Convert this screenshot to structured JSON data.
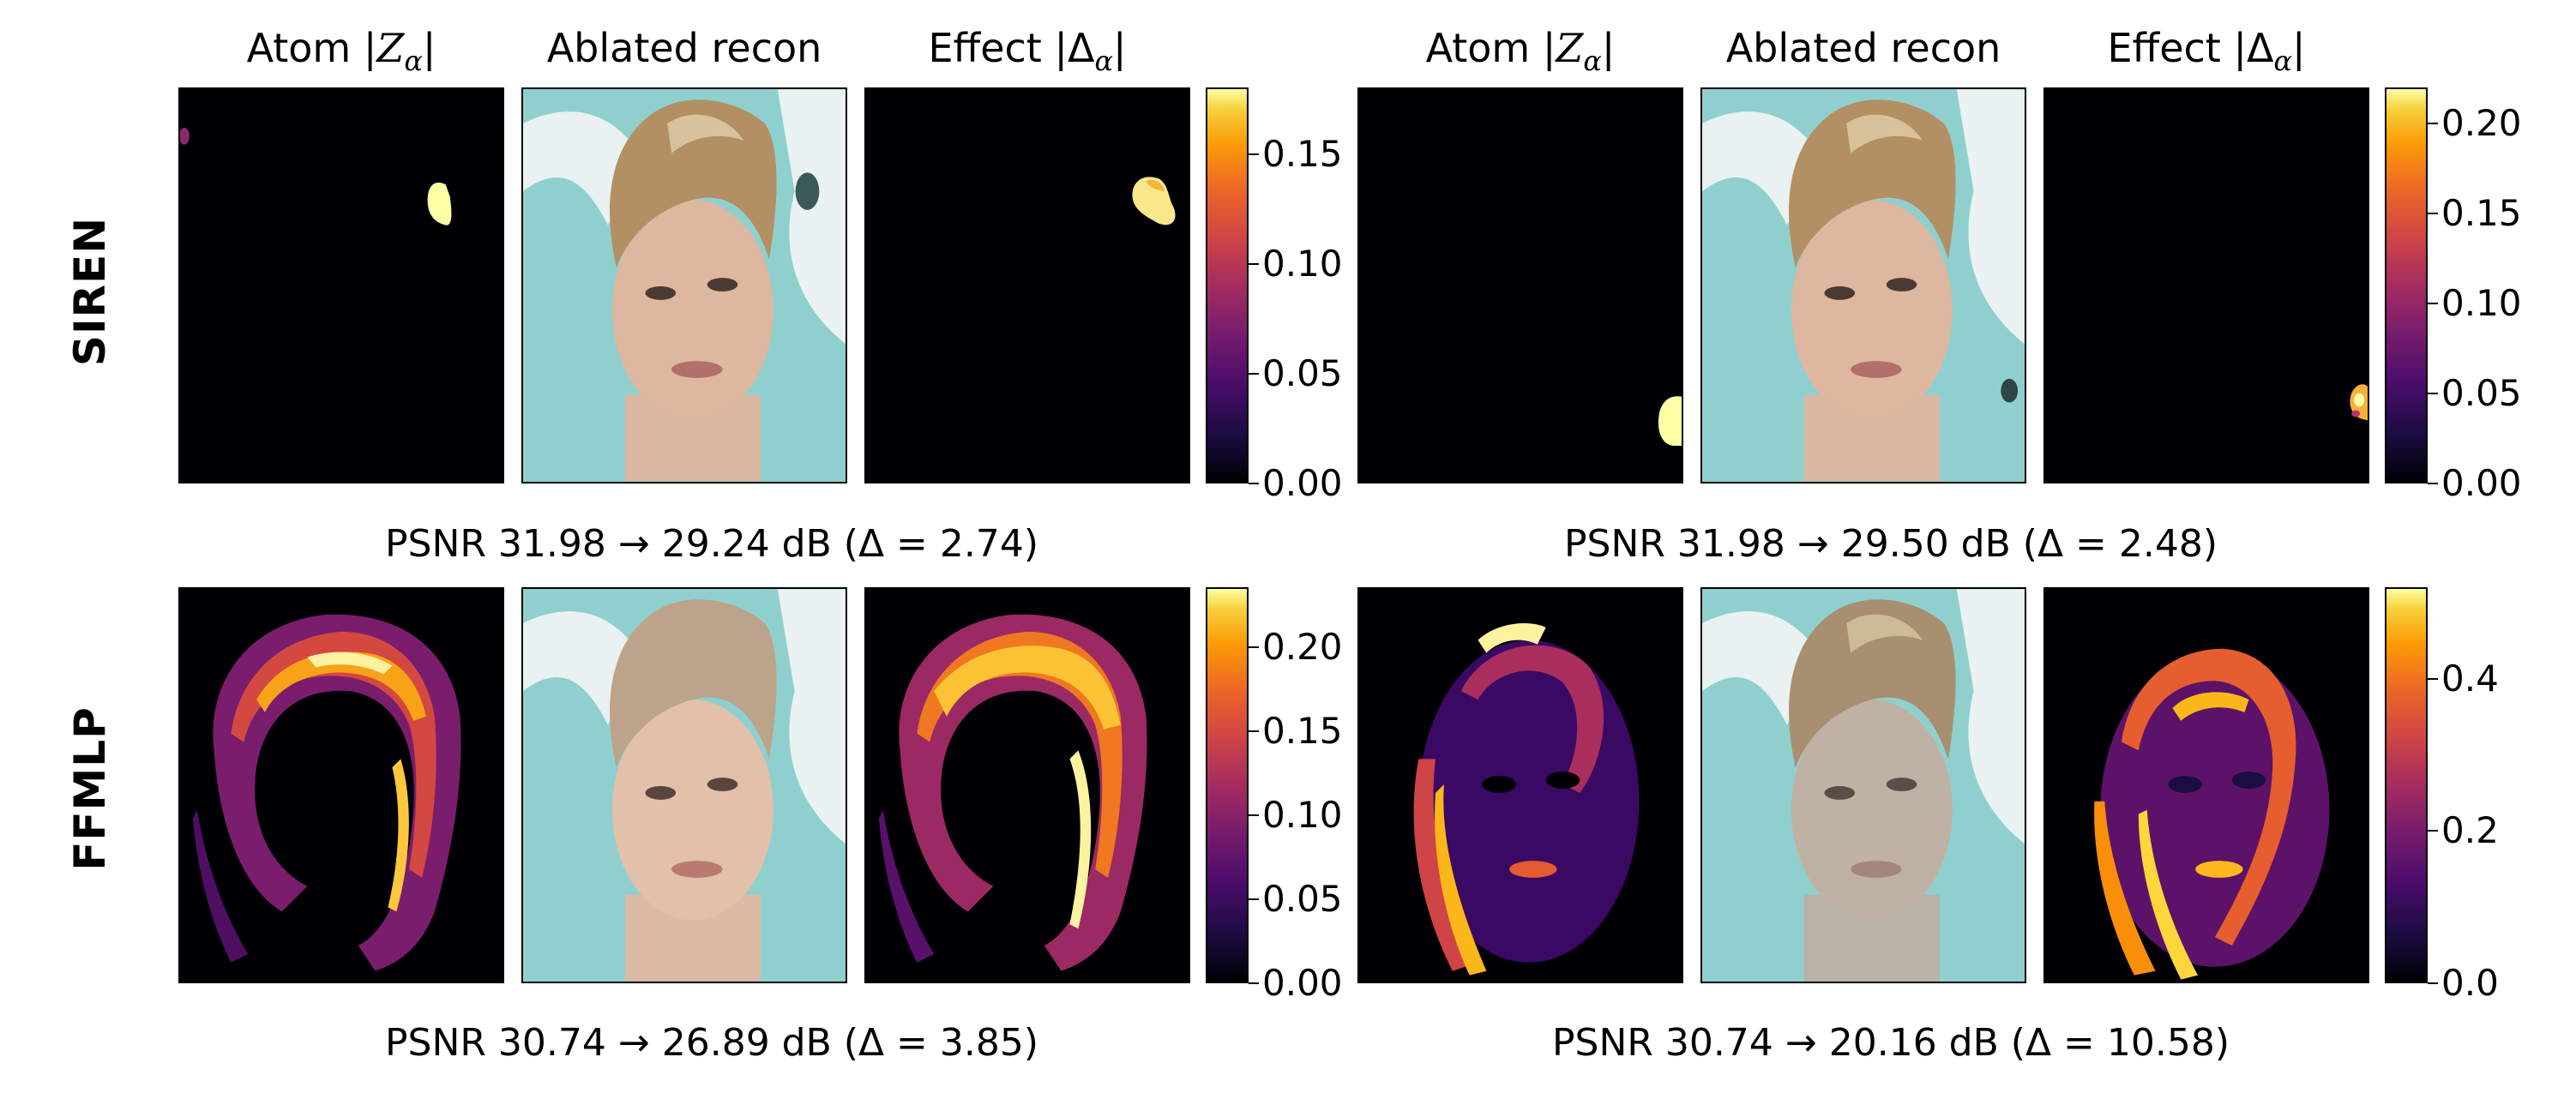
{
  "column_titles": {
    "atom": [
      "Atom |",
      "Z",
      "α",
      "|"
    ],
    "ablated": "Ablated recon",
    "effect": [
      "Effect |",
      "Δ",
      "α",
      "|"
    ]
  },
  "row_labels": {
    "top": "SIREN",
    "bottom": "FFMLP"
  },
  "colorbars": [
    {
      "ticks": [
        "0.00",
        "0.05",
        "0.10",
        "0.15"
      ],
      "values": [
        0.0,
        0.05,
        0.1,
        0.15
      ],
      "max": 0.18
    },
    {
      "ticks": [
        "0.00",
        "0.05",
        "0.10",
        "0.15",
        "0.20"
      ],
      "values": [
        0.0,
        0.05,
        0.1,
        0.15,
        0.2
      ],
      "max": 0.22
    },
    {
      "ticks": [
        "0.00",
        "0.05",
        "0.10",
        "0.15",
        "0.20"
      ],
      "values": [
        0.0,
        0.05,
        0.1,
        0.15,
        0.2
      ],
      "max": 0.235
    },
    {
      "ticks": [
        "0.0",
        "0.2",
        "0.4"
      ],
      "values": [
        0.0,
        0.2,
        0.4
      ],
      "max": 0.52
    }
  ],
  "captions": [
    "PSNR 31.98 → 29.24 dB (Δ = 2.74)",
    "PSNR 31.98 → 29.50 dB (Δ = 2.48)",
    "PSNR 30.74 → 26.89 dB (Δ = 3.85)",
    "PSNR 30.74 → 20.16 dB (Δ = 10.58)"
  ],
  "colors": {
    "inferno_low": "#000004",
    "inferno_high": "#fcffa4",
    "teal_background": "#8fd0cf"
  }
}
